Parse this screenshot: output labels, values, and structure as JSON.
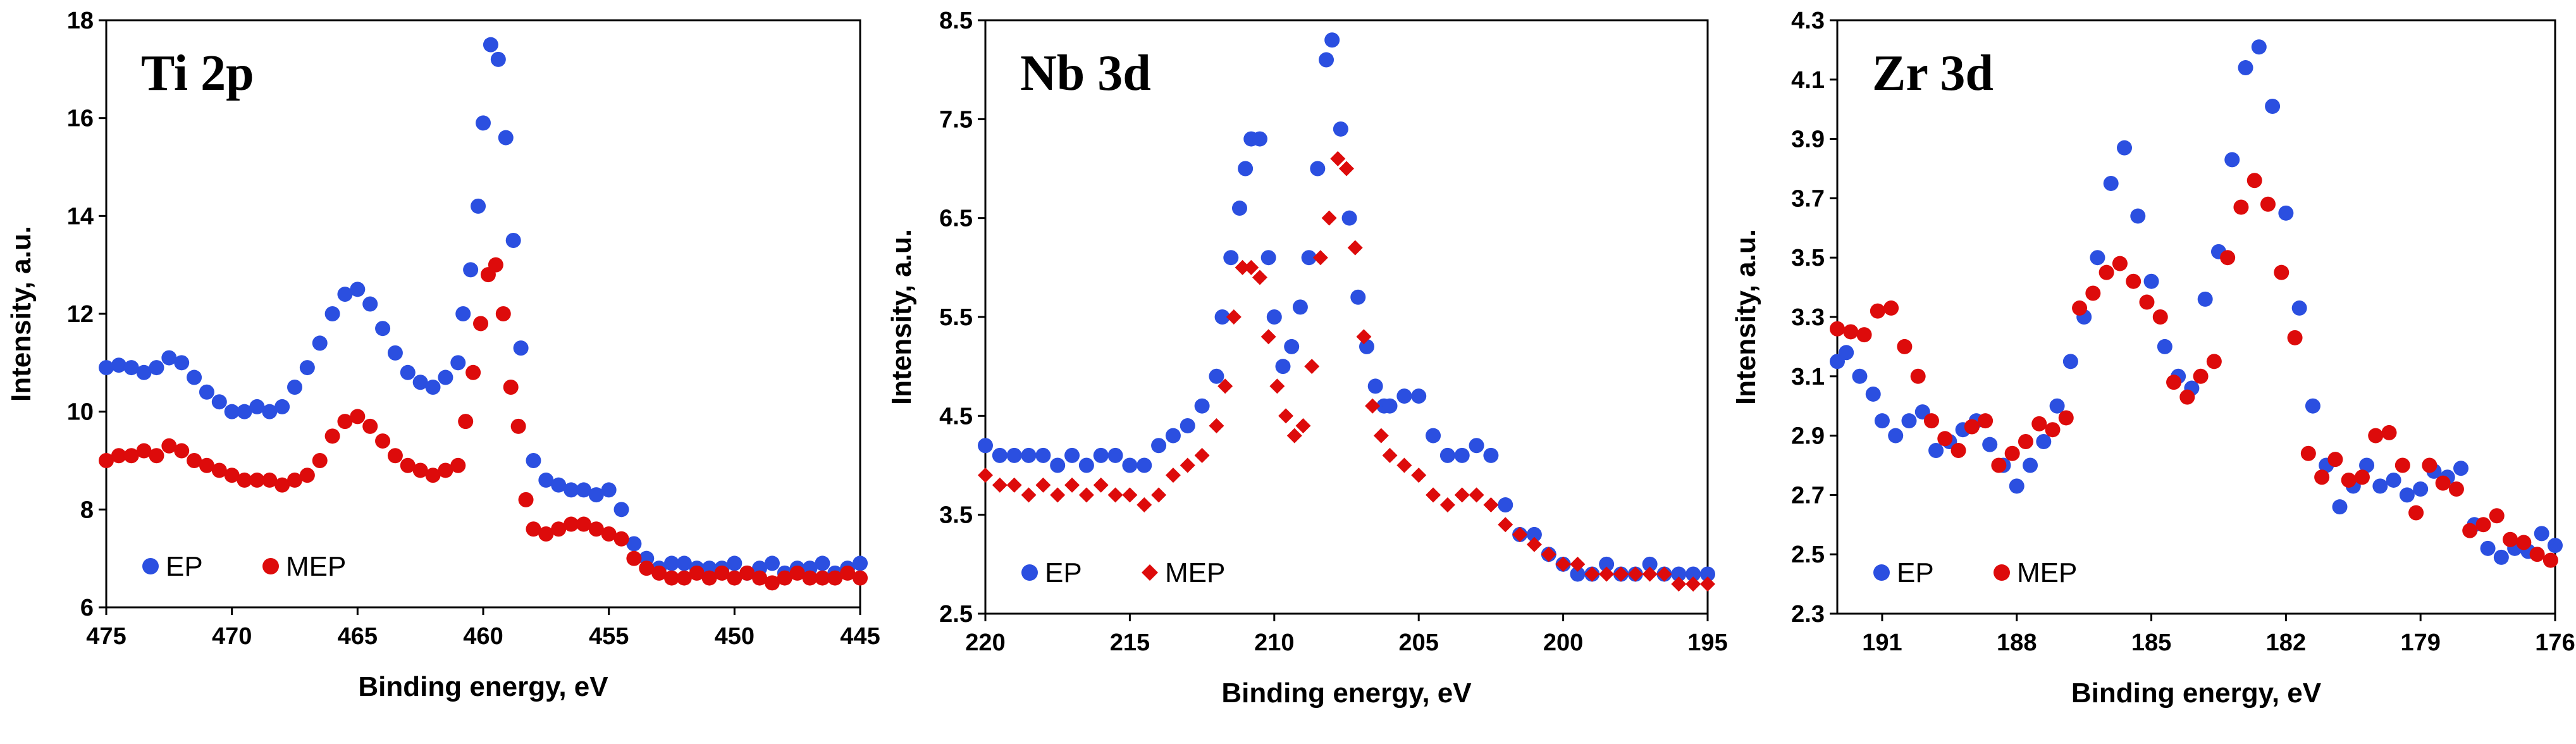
{
  "figure": {
    "colors": {
      "ep": "#2b4fe0",
      "mep": "#dd0b0b",
      "axis": "#000000",
      "background": "#ffffff"
    }
  },
  "chart_data": [
    {
      "type": "scatter",
      "panel_label": "Ti 2p",
      "title": "",
      "xlabel": "Binding energy,  eV",
      "ylabel": "Intensity,  a.u.",
      "xlim": [
        475,
        445
      ],
      "ylim": [
        6,
        18
      ],
      "xticks": [
        "475",
        "470",
        "465",
        "460",
        "455",
        "450",
        "445"
      ],
      "yticks": [
        "6",
        "8",
        "10",
        "12",
        "14",
        "16",
        "18"
      ],
      "legend": {
        "position": "bottom-left",
        "entries": [
          "EP",
          "MEP"
        ]
      },
      "series": [
        {
          "name": "EP",
          "marker": "circle",
          "x": [
            475,
            474.5,
            474,
            473.5,
            473,
            472.5,
            472,
            471.5,
            471,
            470.5,
            470,
            469.5,
            469,
            468.5,
            468,
            467.5,
            467,
            466.5,
            466,
            465.5,
            465,
            464.5,
            464,
            463.5,
            463,
            462.5,
            462,
            461.5,
            461,
            460.8,
            460.5,
            460.2,
            460,
            459.7,
            459.4,
            459.1,
            458.8,
            458.5,
            458,
            457.5,
            457,
            456.5,
            456,
            455.5,
            455,
            454.5,
            454,
            453.5,
            453,
            452.5,
            452,
            451.5,
            451,
            450.5,
            450,
            449.5,
            449,
            448.5,
            448,
            447.5,
            447,
            446.5,
            446,
            445.5,
            445
          ],
          "y": [
            10.9,
            10.95,
            10.9,
            10.8,
            10.9,
            11.1,
            11.0,
            10.7,
            10.4,
            10.2,
            10.0,
            10.0,
            10.1,
            10.0,
            10.1,
            10.5,
            10.9,
            11.4,
            12.0,
            12.4,
            12.5,
            12.2,
            11.7,
            11.2,
            10.8,
            10.6,
            10.5,
            10.7,
            11.0,
            12.0,
            12.9,
            14.2,
            15.9,
            17.5,
            17.2,
            15.6,
            13.5,
            11.3,
            9.0,
            8.6,
            8.5,
            8.4,
            8.4,
            8.3,
            8.4,
            8.0,
            7.3,
            7.0,
            6.8,
            6.9,
            6.9,
            6.8,
            6.8,
            6.8,
            6.9,
            6.7,
            6.8,
            6.9,
            6.7,
            6.8,
            6.8,
            6.9,
            6.7,
            6.8,
            6.9
          ]
        },
        {
          "name": "MEP",
          "marker": "circle",
          "x": [
            475,
            474.5,
            474,
            473.5,
            473,
            472.5,
            472,
            471.5,
            471,
            470.5,
            470,
            469.5,
            469,
            468.5,
            468,
            467.5,
            467,
            466.5,
            466,
            465.5,
            465,
            464.5,
            464,
            463.5,
            463,
            462.5,
            462,
            461.5,
            461,
            460.7,
            460.4,
            460.1,
            459.8,
            459.5,
            459.2,
            458.9,
            458.6,
            458.3,
            458,
            457.5,
            457,
            456.5,
            456,
            455.5,
            455,
            454.5,
            454,
            453.5,
            453,
            452.5,
            452,
            451.5,
            451,
            450.5,
            450,
            449.5,
            449,
            448.5,
            448,
            447.5,
            447,
            446.5,
            446,
            445.5,
            445
          ],
          "y": [
            9.0,
            9.1,
            9.1,
            9.2,
            9.1,
            9.3,
            9.2,
            9.0,
            8.9,
            8.8,
            8.7,
            8.6,
            8.6,
            8.6,
            8.5,
            8.6,
            8.7,
            9.0,
            9.5,
            9.8,
            9.9,
            9.7,
            9.4,
            9.1,
            8.9,
            8.8,
            8.7,
            8.8,
            8.9,
            9.8,
            10.8,
            11.8,
            12.8,
            13.0,
            12.0,
            10.5,
            9.7,
            8.2,
            7.6,
            7.5,
            7.6,
            7.7,
            7.7,
            7.6,
            7.5,
            7.4,
            7.0,
            6.8,
            6.7,
            6.6,
            6.6,
            6.7,
            6.6,
            6.7,
            6.6,
            6.7,
            6.6,
            6.5,
            6.6,
            6.7,
            6.6,
            6.6,
            6.6,
            6.7,
            6.6
          ]
        }
      ]
    },
    {
      "type": "scatter",
      "panel_label": "Nb 3d",
      "title": "",
      "xlabel": "Binding energy,  eV",
      "ylabel": "Intensity,  a.u.",
      "xlim": [
        220,
        195
      ],
      "ylim": [
        2.5,
        8.5
      ],
      "xticks": [
        "220",
        "215",
        "210",
        "205",
        "200",
        "195"
      ],
      "yticks": [
        "2.5",
        "3.5",
        "4.5",
        "5.5",
        "6.5",
        "7.5",
        "8.5"
      ],
      "legend": {
        "position": "bottom-left",
        "entries": [
          "EP",
          "MEP"
        ]
      },
      "series": [
        {
          "name": "EP",
          "marker": "circle",
          "x": [
            220,
            219.5,
            219,
            218.5,
            218,
            217.5,
            217,
            216.5,
            216,
            215.5,
            215,
            214.5,
            214,
            213.5,
            213,
            212.5,
            212,
            211.8,
            211.5,
            211.2,
            211,
            210.8,
            210.5,
            210.2,
            210,
            209.7,
            209.4,
            209.1,
            208.8,
            208.5,
            208.2,
            208,
            207.7,
            207.4,
            207.1,
            206.8,
            206.5,
            206.2,
            206,
            205.5,
            205,
            204.5,
            204,
            203.5,
            203,
            202.5,
            202,
            201.5,
            201,
            200.5,
            200,
            199.5,
            199,
            198.5,
            198,
            197.5,
            197,
            196.5,
            196,
            195.5,
            195
          ],
          "y": [
            4.2,
            4.1,
            4.1,
            4.1,
            4.1,
            4.0,
            4.1,
            4.0,
            4.1,
            4.1,
            4.0,
            4.0,
            4.2,
            4.3,
            4.4,
            4.6,
            4.9,
            5.5,
            6.1,
            6.6,
            7.0,
            7.3,
            7.3,
            6.1,
            5.5,
            5.0,
            5.2,
            5.6,
            6.1,
            7.0,
            8.1,
            8.3,
            7.4,
            6.5,
            5.7,
            5.2,
            4.8,
            4.6,
            4.6,
            4.7,
            4.7,
            4.3,
            4.1,
            4.1,
            4.2,
            4.1,
            3.6,
            3.3,
            3.3,
            3.1,
            3.0,
            2.9,
            2.9,
            3.0,
            2.9,
            2.9,
            3.0,
            2.9,
            2.9,
            2.9,
            2.9
          ]
        },
        {
          "name": "MEP",
          "marker": "diamond",
          "x": [
            220,
            219.5,
            219,
            218.5,
            218,
            217.5,
            217,
            216.5,
            216,
            215.5,
            215,
            214.5,
            214,
            213.5,
            213,
            212.5,
            212,
            211.7,
            211.4,
            211.1,
            210.8,
            210.5,
            210.2,
            209.9,
            209.6,
            209.3,
            209,
            208.7,
            208.4,
            208.1,
            207.8,
            207.5,
            207.2,
            206.9,
            206.6,
            206.3,
            206,
            205.5,
            205,
            204.5,
            204,
            203.5,
            203,
            202.5,
            202,
            201.5,
            201,
            200.5,
            200,
            199.5,
            199,
            198.5,
            198,
            197.5,
            197,
            196.5,
            196,
            195.5,
            195
          ],
          "y": [
            3.9,
            3.8,
            3.8,
            3.7,
            3.8,
            3.7,
            3.8,
            3.7,
            3.8,
            3.7,
            3.7,
            3.6,
            3.7,
            3.9,
            4.0,
            4.1,
            4.4,
            4.8,
            5.5,
            6.0,
            6.0,
            5.9,
            5.3,
            4.8,
            4.5,
            4.3,
            4.4,
            5.0,
            6.1,
            6.5,
            7.1,
            7.0,
            6.2,
            5.3,
            4.6,
            4.3,
            4.1,
            4.0,
            3.9,
            3.7,
            3.6,
            3.7,
            3.7,
            3.6,
            3.4,
            3.3,
            3.2,
            3.1,
            3.0,
            3.0,
            2.9,
            2.9,
            2.9,
            2.9,
            2.9,
            2.9,
            2.8,
            2.8,
            2.8
          ]
        }
      ]
    },
    {
      "type": "scatter",
      "panel_label": "Zr 3d",
      "title": "",
      "xlabel": "Binding energy,  eV",
      "ylabel": "Intensity,  a.u.",
      "xlim": [
        192,
        176
      ],
      "ylim": [
        2.3,
        4.3
      ],
      "xticks": [
        "191",
        "188",
        "185",
        "182",
        "179",
        "176"
      ],
      "yticks": [
        "2.3",
        "2.5",
        "2.7",
        "2.9",
        "3.1",
        "3.3",
        "3.5",
        "3.7",
        "3.9",
        "4.1",
        "4.3"
      ],
      "legend": {
        "position": "bottom-left",
        "entries": [
          "EP",
          "MEP"
        ]
      },
      "series": [
        {
          "name": "EP",
          "marker": "circle",
          "x": [
            192,
            191.8,
            191.5,
            191.2,
            191,
            190.7,
            190.4,
            190.1,
            189.8,
            189.5,
            189.2,
            188.9,
            188.6,
            188.3,
            188,
            187.7,
            187.4,
            187.1,
            186.8,
            186.5,
            186.2,
            185.9,
            185.6,
            185.3,
            185,
            184.7,
            184.4,
            184.1,
            183.8,
            183.5,
            183.2,
            182.9,
            182.6,
            182.3,
            182,
            181.7,
            181.4,
            181.1,
            180.8,
            180.5,
            180.2,
            179.9,
            179.6,
            179.3,
            179,
            178.7,
            178.4,
            178.1,
            177.8,
            177.5,
            177.2,
            176.9,
            176.6,
            176.3,
            176
          ],
          "y": [
            3.15,
            3.18,
            3.1,
            3.04,
            2.95,
            2.9,
            2.95,
            2.98,
            2.85,
            2.88,
            2.92,
            2.95,
            2.87,
            2.8,
            2.73,
            2.8,
            2.88,
            3.0,
            3.15,
            3.3,
            3.5,
            3.75,
            3.87,
            3.64,
            3.42,
            3.2,
            3.1,
            3.06,
            3.36,
            3.52,
            3.83,
            4.14,
            4.21,
            4.01,
            3.65,
            3.33,
            3.0,
            2.8,
            2.66,
            2.73,
            2.8,
            2.73,
            2.75,
            2.7,
            2.72,
            2.78,
            2.76,
            2.79,
            2.6,
            2.52,
            2.49,
            2.52,
            2.51,
            2.57,
            2.53
          ]
        },
        {
          "name": "MEP",
          "marker": "circle",
          "x": [
            192,
            191.7,
            191.4,
            191.1,
            190.8,
            190.5,
            190.2,
            189.9,
            189.6,
            189.3,
            189,
            188.7,
            188.4,
            188.1,
            187.8,
            187.5,
            187.2,
            186.9,
            186.6,
            186.3,
            186,
            185.7,
            185.4,
            185.1,
            184.8,
            184.5,
            184.2,
            183.9,
            183.6,
            183.3,
            183,
            182.7,
            182.4,
            182.1,
            181.8,
            181.5,
            181.2,
            180.9,
            180.6,
            180.3,
            180,
            179.7,
            179.4,
            179.1,
            178.8,
            178.5,
            178.2,
            177.9,
            177.6,
            177.3,
            177,
            176.7,
            176.4,
            176.1
          ],
          "y": [
            3.26,
            3.25,
            3.24,
            3.32,
            3.33,
            3.2,
            3.1,
            2.95,
            2.89,
            2.85,
            2.93,
            2.95,
            2.8,
            2.84,
            2.88,
            2.94,
            2.92,
            2.96,
            3.33,
            3.38,
            3.45,
            3.48,
            3.42,
            3.35,
            3.3,
            3.08,
            3.03,
            3.1,
            3.15,
            3.5,
            3.67,
            3.76,
            3.68,
            3.45,
            3.23,
            2.84,
            2.76,
            2.82,
            2.75,
            2.76,
            2.9,
            2.91,
            2.8,
            2.64,
            2.8,
            2.74,
            2.72,
            2.58,
            2.6,
            2.63,
            2.55,
            2.54,
            2.5,
            2.48
          ]
        }
      ]
    }
  ]
}
